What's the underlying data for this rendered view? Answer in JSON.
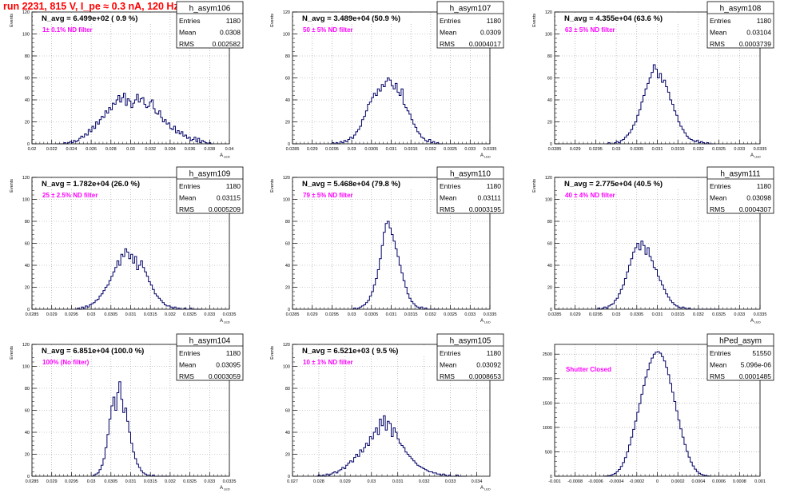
{
  "page": {
    "title": "run 2231,   815 V, I_pe ≈ 0.3 nA, 120 Hz"
  },
  "chart_data": [
    {
      "type": "bar",
      "name": "h_asym106",
      "title": "N_avg = 6.499e+02 ( 0.9 %)",
      "annotation": "1± 0.1% ND filter",
      "ylabel": "Events",
      "xlabel": "A_LED",
      "stats": {
        "entries": "1180",
        "mean": "0.0308",
        "rms": "0.002582"
      },
      "stats_labels": {
        "entries": "Entries",
        "mean": "Mean",
        "rms": "RMS"
      },
      "xlim": [
        0.02,
        0.04
      ],
      "xticks": [
        "0.02",
        "0.022",
        "0.024",
        "0.026",
        "0.028",
        "0.03",
        "0.032",
        "0.034",
        "0.036",
        "0.038",
        "0.04"
      ],
      "ylim": [
        0,
        120
      ],
      "yticks": [
        "0",
        "20",
        "40",
        "60",
        "80",
        "100",
        "120"
      ],
      "grid": true,
      "bins": {
        "x0": 0.0225,
        "x1": 0.0383,
        "values": [
          0,
          0,
          0,
          0,
          1,
          0,
          1,
          2,
          1,
          3,
          2,
          3,
          5,
          7,
          6,
          9,
          8,
          13,
          11,
          16,
          14,
          20,
          18,
          22,
          25,
          24,
          30,
          28,
          33,
          31,
          37,
          36,
          40,
          44,
          38,
          42,
          46,
          35,
          41,
          39,
          33,
          37,
          40,
          45,
          38,
          41,
          42,
          36,
          33,
          34,
          38,
          40,
          32,
          28,
          27,
          30,
          24,
          20,
          22,
          18,
          19,
          14,
          13,
          16,
          10,
          12,
          9,
          11,
          7,
          8,
          5,
          6,
          3,
          4,
          6,
          2,
          5,
          1,
          3,
          2,
          1,
          0,
          1,
          0
        ]
      }
    },
    {
      "type": "bar",
      "name": "h_asym107",
      "title": "N_avg = 3.489e+04 (50.9 %)",
      "annotation": "50 ± 5% ND filter",
      "ylabel": "Events",
      "xlabel": "A_LED",
      "stats": {
        "entries": "1180",
        "mean": "0.0309",
        "rms": "0.0004017"
      },
      "stats_labels": {
        "entries": "Entries",
        "mean": "Mean",
        "rms": "RMS"
      },
      "xlim": [
        0.0285,
        0.0335
      ],
      "xticks": [
        "0.0285",
        "0.029",
        "0.0295",
        "0.03",
        "0.0305",
        "0.031",
        "0.0315",
        "0.032",
        "0.0325",
        "0.033",
        "0.0335"
      ],
      "ylim": [
        0,
        120
      ],
      "yticks": [
        "0",
        "20",
        "40",
        "60",
        "80",
        "100",
        "120"
      ],
      "grid": true,
      "bins": {
        "x0": 0.02945,
        "x1": 0.0323,
        "values": [
          0,
          1,
          0,
          1,
          0,
          2,
          1,
          3,
          2,
          4,
          6,
          5,
          8,
          11,
          13,
          16,
          22,
          25,
          30,
          36,
          38,
          42,
          46,
          44,
          50,
          48,
          54,
          52,
          57,
          60,
          58,
          53,
          50,
          55,
          47,
          44,
          50,
          36,
          33,
          30,
          27,
          22,
          18,
          15,
          11,
          9,
          6,
          5,
          3,
          2,
          4,
          1,
          2,
          0,
          1,
          0,
          0
        ]
      }
    },
    {
      "type": "bar",
      "name": "h_asym108",
      "title": "N_avg = 4.355e+04 (63.6 %)",
      "annotation": "63 ± 5% ND filter",
      "ylabel": "Events",
      "xlabel": "A_LED",
      "stats": {
        "entries": "1180",
        "mean": "0.03104",
        "rms": "0.0003739"
      },
      "stats_labels": {
        "entries": "Entries",
        "mean": "Mean",
        "rms": "RMS"
      },
      "xlim": [
        0.0285,
        0.0335
      ],
      "xticks": [
        "0.0285",
        "0.029",
        "0.0295",
        "0.03",
        "0.0305",
        "0.031",
        "0.0315",
        "0.032",
        "0.0325",
        "0.033",
        "0.0335"
      ],
      "ylim": [
        0,
        120
      ],
      "yticks": [
        "0",
        "20",
        "40",
        "60",
        "80",
        "100",
        "120"
      ],
      "grid": true,
      "bins": {
        "x0": 0.02975,
        "x1": 0.0324,
        "values": [
          0,
          1,
          0,
          0,
          1,
          2,
          1,
          3,
          4,
          6,
          8,
          10,
          13,
          17,
          20,
          26,
          31,
          38,
          44,
          50,
          55,
          60,
          65,
          72,
          68,
          60,
          64,
          56,
          58,
          52,
          47,
          40,
          36,
          30,
          26,
          20,
          16,
          13,
          10,
          7,
          5,
          4,
          3,
          2,
          3,
          1,
          2,
          1,
          0,
          1,
          0,
          0,
          0
        ]
      }
    },
    {
      "type": "bar",
      "name": "h_asym109",
      "title": "N_avg = 1.782e+04 (26.0 %)",
      "annotation": "25 ± 2.5% ND filter",
      "ylabel": "Events",
      "xlabel": "A_LED",
      "stats": {
        "entries": "1180",
        "mean": "0.03115",
        "rms": "0.0005209"
      },
      "stats_labels": {
        "entries": "Entries",
        "mean": "Mean",
        "rms": "RMS"
      },
      "xlim": [
        0.0285,
        0.0335
      ],
      "xticks": [
        "0.0285",
        "0.029",
        "0.0295",
        "0.03",
        "0.0305",
        "0.031",
        "0.0315",
        "0.032",
        "0.0325",
        "0.033",
        "0.0335"
      ],
      "ylim": [
        0,
        120
      ],
      "yticks": [
        "0",
        "20",
        "40",
        "60",
        "80",
        "100",
        "120"
      ],
      "grid": true,
      "bins": {
        "x0": 0.0296,
        "x1": 0.0328,
        "values": [
          0,
          1,
          0,
          2,
          1,
          3,
          2,
          4,
          5,
          6,
          8,
          9,
          12,
          14,
          17,
          20,
          22,
          26,
          30,
          34,
          38,
          44,
          40,
          50,
          48,
          55,
          52,
          46,
          50,
          42,
          48,
          36,
          40,
          44,
          38,
          34,
          30,
          25,
          22,
          18,
          14,
          12,
          10,
          8,
          6,
          4,
          3,
          3,
          2,
          1,
          2,
          0,
          1,
          0,
          0,
          1,
          0,
          0,
          1,
          0,
          0,
          0,
          0,
          0
        ]
      }
    },
    {
      "type": "bar",
      "name": "h_asym110",
      "title": "N_avg = 5.468e+04 (79.8 %)",
      "annotation": "79 ± 5% ND filter",
      "ylabel": "Events",
      "xlabel": "A_LED",
      "stats": {
        "entries": "1180",
        "mean": "0.03111",
        "rms": "0.0003195"
      },
      "stats_labels": {
        "entries": "Entries",
        "mean": "Mean",
        "rms": "RMS"
      },
      "xlim": [
        0.0285,
        0.0335
      ],
      "xticks": [
        "0.0285",
        "0.029",
        "0.0295",
        "0.03",
        "0.0305",
        "0.031",
        "0.0315",
        "0.032",
        "0.0325",
        "0.033",
        "0.0335"
      ],
      "ylim": [
        0,
        120
      ],
      "yticks": [
        "0",
        "20",
        "40",
        "60",
        "80",
        "100",
        "120"
      ],
      "grid": true,
      "bins": {
        "x0": 0.03,
        "x1": 0.0322,
        "values": [
          0,
          1,
          0,
          1,
          2,
          3,
          4,
          6,
          8,
          12,
          16,
          22,
          28,
          36,
          46,
          58,
          70,
          78,
          80,
          74,
          68,
          62,
          55,
          48,
          40,
          33,
          26,
          20,
          14,
          10,
          7,
          5,
          3,
          2,
          1,
          2,
          0,
          1,
          0,
          0,
          0,
          0,
          0,
          0
        ]
      }
    },
    {
      "type": "bar",
      "name": "h_asym111",
      "title": "N_avg = 2.775e+04 (40.5 %)",
      "annotation": "40 ± 4% ND filter",
      "ylabel": "Events",
      "xlabel": "A_LED",
      "stats": {
        "entries": "1180",
        "mean": "0.03098",
        "rms": "0.0004307"
      },
      "stats_labels": {
        "entries": "Entries",
        "mean": "Mean",
        "rms": "RMS"
      },
      "xlim": [
        0.0285,
        0.0335
      ],
      "xticks": [
        "0.0285",
        "0.029",
        "0.0295",
        "0.03",
        "0.0305",
        "0.031",
        "0.0315",
        "0.032",
        "0.0325",
        "0.033",
        "0.0335"
      ],
      "ylim": [
        0,
        120
      ],
      "yticks": [
        "0",
        "20",
        "40",
        "60",
        "80",
        "100",
        "120"
      ],
      "grid": true,
      "bins": {
        "x0": 0.0295,
        "x1": 0.0325,
        "values": [
          0,
          1,
          0,
          1,
          2,
          1,
          3,
          4,
          5,
          8,
          10,
          14,
          18,
          22,
          28,
          34,
          40,
          46,
          52,
          56,
          60,
          54,
          62,
          58,
          50,
          56,
          48,
          44,
          38,
          36,
          30,
          26,
          22,
          18,
          14,
          11,
          8,
          6,
          4,
          3,
          2,
          1,
          2,
          1,
          0,
          1,
          0,
          0,
          0,
          0,
          0,
          0,
          0,
          0,
          0,
          0,
          0,
          0,
          0,
          0
        ]
      }
    },
    {
      "type": "bar",
      "name": "h_asym104",
      "title": "N_avg = 6.851e+04 (100.0 %)",
      "annotation": "100% (No filter)",
      "ylabel": "Events",
      "xlabel": "A_LED",
      "stats": {
        "entries": "1180",
        "mean": "0.03095",
        "rms": "0.0003059"
      },
      "stats_labels": {
        "entries": "Entries",
        "mean": "Mean",
        "rms": "RMS"
      },
      "xlim": [
        0.0285,
        0.0335
      ],
      "xticks": [
        "0.0285",
        "0.029",
        "0.0295",
        "0.03",
        "0.0305",
        "0.031",
        "0.0315",
        "0.032",
        "0.0325",
        "0.033",
        "0.0335"
      ],
      "ylim": [
        0,
        120
      ],
      "yticks": [
        "0",
        "20",
        "40",
        "60",
        "80",
        "100",
        "120"
      ],
      "grid": true,
      "bins": {
        "x0": 0.03,
        "x1": 0.032,
        "values": [
          0,
          1,
          2,
          3,
          6,
          10,
          16,
          26,
          38,
          52,
          64,
          72,
          60,
          76,
          86,
          70,
          58,
          62,
          50,
          40,
          30,
          22,
          16,
          11,
          8,
          5,
          3,
          2,
          1,
          1,
          0,
          1,
          0,
          0,
          0,
          0,
          0,
          0,
          0,
          0
        ]
      }
    },
    {
      "type": "bar",
      "name": "h_asym105",
      "title": "N_avg = 6.521e+03 ( 9.5 %)",
      "annotation": "10 ± 1% ND filter",
      "ylabel": "Events",
      "xlabel": "A_LED",
      "stats": {
        "entries": "1180",
        "mean": "0.03092",
        "rms": "0.0008653"
      },
      "stats_labels": {
        "entries": "Entries",
        "mean": "Mean",
        "rms": "RMS"
      },
      "xlim": [
        0.027,
        0.0345
      ],
      "xticks": [
        "0.027",
        "0.028",
        "0.029",
        "0.03",
        "0.031",
        "0.032",
        "0.033",
        "0.034"
      ],
      "ylim": [
        0,
        120
      ],
      "yticks": [
        "0",
        "20",
        "40",
        "60",
        "80",
        "100",
        "120"
      ],
      "grid": true,
      "bins": {
        "x0": 0.0279,
        "x1": 0.0336,
        "values": [
          0,
          1,
          0,
          1,
          0,
          2,
          1,
          2,
          3,
          4,
          3,
          5,
          6,
          8,
          7,
          10,
          12,
          14,
          13,
          17,
          20,
          18,
          24,
          22,
          26,
          30,
          28,
          36,
          34,
          40,
          44,
          38,
          52,
          46,
          55,
          42,
          50,
          48,
          36,
          44,
          40,
          34,
          30,
          28,
          26,
          22,
          20,
          18,
          16,
          14,
          12,
          10,
          9,
          8,
          7,
          6,
          5,
          4,
          4,
          3,
          3,
          2,
          2,
          1,
          2,
          1,
          0,
          1,
          0,
          0,
          0,
          1,
          0,
          0,
          0,
          0
        ]
      }
    },
    {
      "type": "bar",
      "name": "hPed_asym",
      "title": "",
      "annotation": "Shutter Closed",
      "ylabel": "",
      "xlabel": "",
      "stats": {
        "entries": "51550",
        "mean": "5.096e-06",
        "rms": "0.0001485"
      },
      "stats_labels": {
        "entries": "Entries",
        "mean": "Mean",
        "rms": "RMS"
      },
      "xlim": [
        -0.001,
        0.001
      ],
      "xticks": [
        "-0.001",
        "-0.0008",
        "-0.0006",
        "-0.0004",
        "-0.0002",
        "0",
        "0.0002",
        "0.0004",
        "0.0006",
        "0.0008",
        "0.001"
      ],
      "ylim": [
        0,
        2700
      ],
      "yticks": [
        "0",
        "500",
        "1000",
        "1500",
        "2000",
        "2500"
      ],
      "grid": true,
      "bins": {
        "x0": -0.00052,
        "x1": 0.00052,
        "values": [
          2,
          5,
          10,
          20,
          36,
          60,
          95,
          140,
          200,
          280,
          380,
          500,
          640,
          800,
          960,
          1130,
          1310,
          1490,
          1680,
          1860,
          2030,
          2180,
          2320,
          2420,
          2500,
          2540,
          2550,
          2520,
          2450,
          2360,
          2230,
          2080,
          1900,
          1720,
          1530,
          1340,
          1150,
          970,
          800,
          650,
          510,
          390,
          290,
          210,
          145,
          96,
          62,
          38,
          22,
          12,
          6,
          3
        ]
      }
    }
  ]
}
